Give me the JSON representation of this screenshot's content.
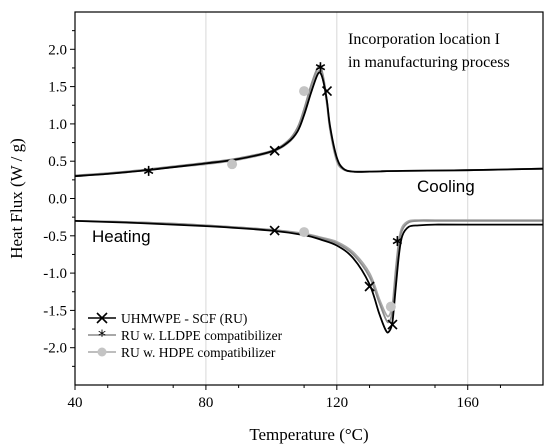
{
  "chart_data": {
    "type": "line",
    "title": "",
    "xlabel": "Temperature (°C)",
    "ylabel": "Heat Flux (W / g)",
    "xlim": [
      40,
      183
    ],
    "ylim": [
      -2.5,
      2.5
    ],
    "xticks": [
      40,
      80,
      120,
      160
    ],
    "yticks": [
      -2.0,
      -1.5,
      -1.0,
      -0.5,
      0.0,
      0.5,
      1.0,
      1.5,
      2.0
    ],
    "x_tick_labels": [
      "40",
      "80",
      "120",
      "160"
    ],
    "y_tick_labels": [
      "-2.0",
      "-1.5",
      "-1.0",
      "-0.5",
      "0.0",
      "0.5",
      "1.0",
      "1.5",
      "2.0"
    ],
    "grid": "vertical",
    "annotation": [
      "Incorporation location I",
      "in manufacturing process"
    ],
    "curve_labels": {
      "cooling": "Cooling",
      "heating": "Heating"
    },
    "legend": {
      "position": "bottom-left",
      "entries": [
        {
          "label": "UHMWPE - SCF (RU)",
          "color": "#000000",
          "marker": "x"
        },
        {
          "label": "RU w. LLDPE compatibilizer",
          "color": "#8c8c8c",
          "marker": "asterisk"
        },
        {
          "label": "RU w. HDPE compatibilizer",
          "color": "#a8a8a8",
          "marker": "circle"
        }
      ]
    },
    "series": [
      {
        "name": "UHMWPE - SCF (RU)",
        "segment": "cooling",
        "color": "#000000",
        "marker": "x",
        "x": [
          40,
          50,
          60,
          70,
          80,
          90,
          100,
          105,
          108,
          110,
          112,
          114,
          115,
          116,
          117,
          118,
          120,
          122,
          125,
          130,
          140,
          160,
          183
        ],
        "y": [
          0.3,
          0.33,
          0.37,
          0.42,
          0.47,
          0.53,
          0.63,
          0.75,
          0.9,
          1.12,
          1.4,
          1.65,
          1.68,
          1.55,
          1.3,
          0.95,
          0.55,
          0.4,
          0.36,
          0.36,
          0.37,
          0.38,
          0.4
        ],
        "marker_points": [
          [
            101,
            0.64
          ],
          [
            117,
            1.44
          ]
        ]
      },
      {
        "name": "UHMWPE - SCF (RU)",
        "segment": "heating",
        "color": "#000000",
        "marker": "x",
        "x": [
          40,
          60,
          80,
          100,
          110,
          115,
          120,
          125,
          130,
          133,
          135,
          136,
          137,
          138,
          139,
          140,
          142,
          145,
          150,
          160,
          183
        ],
        "y": [
          -0.3,
          -0.33,
          -0.37,
          -0.43,
          -0.49,
          -0.55,
          -0.63,
          -0.8,
          -1.15,
          -1.55,
          -1.77,
          -1.78,
          -1.65,
          -1.2,
          -0.75,
          -0.5,
          -0.38,
          -0.36,
          -0.35,
          -0.35,
          -0.35
        ],
        "marker_points": [
          [
            101,
            -0.43
          ],
          [
            130,
            -1.18
          ],
          [
            137,
            -1.69
          ]
        ]
      },
      {
        "name": "RU w. LLDPE compatibilizer",
        "segment": "cooling",
        "color": "#8c8c8c",
        "marker": "asterisk",
        "x": [
          40,
          50,
          60,
          70,
          80,
          90,
          100,
          105,
          108,
          110,
          112,
          114,
          115,
          116,
          117,
          118,
          120,
          122,
          125,
          130,
          140,
          160,
          183
        ],
        "y": [
          0.31,
          0.34,
          0.38,
          0.43,
          0.48,
          0.54,
          0.64,
          0.77,
          0.95,
          1.2,
          1.5,
          1.74,
          1.77,
          1.6,
          1.3,
          0.92,
          0.52,
          0.39,
          0.36,
          0.36,
          0.37,
          0.38,
          0.4
        ],
        "marker_points": [
          [
            62.5,
            0.37
          ],
          [
            115,
            1.76
          ]
        ]
      },
      {
        "name": "RU w. LLDPE compatibilizer",
        "segment": "heating",
        "color": "#8c8c8c",
        "marker": "asterisk",
        "x": [
          40,
          60,
          80,
          100,
          110,
          115,
          120,
          125,
          130,
          133,
          135,
          136,
          137,
          138,
          139,
          140,
          142,
          145,
          150,
          160,
          183
        ],
        "y": [
          -0.3,
          -0.32,
          -0.36,
          -0.42,
          -0.48,
          -0.53,
          -0.6,
          -0.75,
          -1.05,
          -1.4,
          -1.62,
          -1.65,
          -1.5,
          -1.0,
          -0.6,
          -0.42,
          -0.32,
          -0.3,
          -0.3,
          -0.3,
          -0.3
        ],
        "marker_points": [
          [
            138.5,
            -0.57
          ]
        ]
      },
      {
        "name": "RU w. HDPE compatibilizer",
        "segment": "cooling",
        "color": "#a8a8a8",
        "marker": "circle",
        "x": [
          40,
          50,
          60,
          70,
          80,
          90,
          100,
          105,
          108,
          110,
          112,
          114,
          115,
          116,
          117,
          118,
          120,
          122,
          125,
          130,
          140,
          160,
          183
        ],
        "y": [
          0.3,
          0.33,
          0.37,
          0.42,
          0.46,
          0.52,
          0.62,
          0.74,
          0.9,
          1.15,
          1.45,
          1.68,
          1.7,
          1.55,
          1.25,
          0.9,
          0.5,
          0.39,
          0.36,
          0.36,
          0.37,
          0.38,
          0.4
        ],
        "marker_points": [
          [
            88,
            0.46
          ],
          [
            110,
            1.44
          ]
        ]
      },
      {
        "name": "RU w. HDPE compatibilizer",
        "segment": "heating",
        "color": "#a8a8a8",
        "marker": "circle",
        "x": [
          40,
          60,
          80,
          100,
          110,
          115,
          120,
          125,
          130,
          133,
          135,
          136,
          137,
          138,
          139,
          140,
          142,
          145,
          150,
          160,
          183
        ],
        "y": [
          -0.3,
          -0.32,
          -0.36,
          -0.42,
          -0.47,
          -0.52,
          -0.58,
          -0.72,
          -1.0,
          -1.35,
          -1.55,
          -1.57,
          -1.42,
          -0.95,
          -0.55,
          -0.38,
          -0.3,
          -0.29,
          -0.29,
          -0.29,
          -0.29
        ],
        "marker_points": [
          [
            110,
            -0.45
          ],
          [
            136.5,
            -1.45
          ]
        ]
      }
    ]
  }
}
